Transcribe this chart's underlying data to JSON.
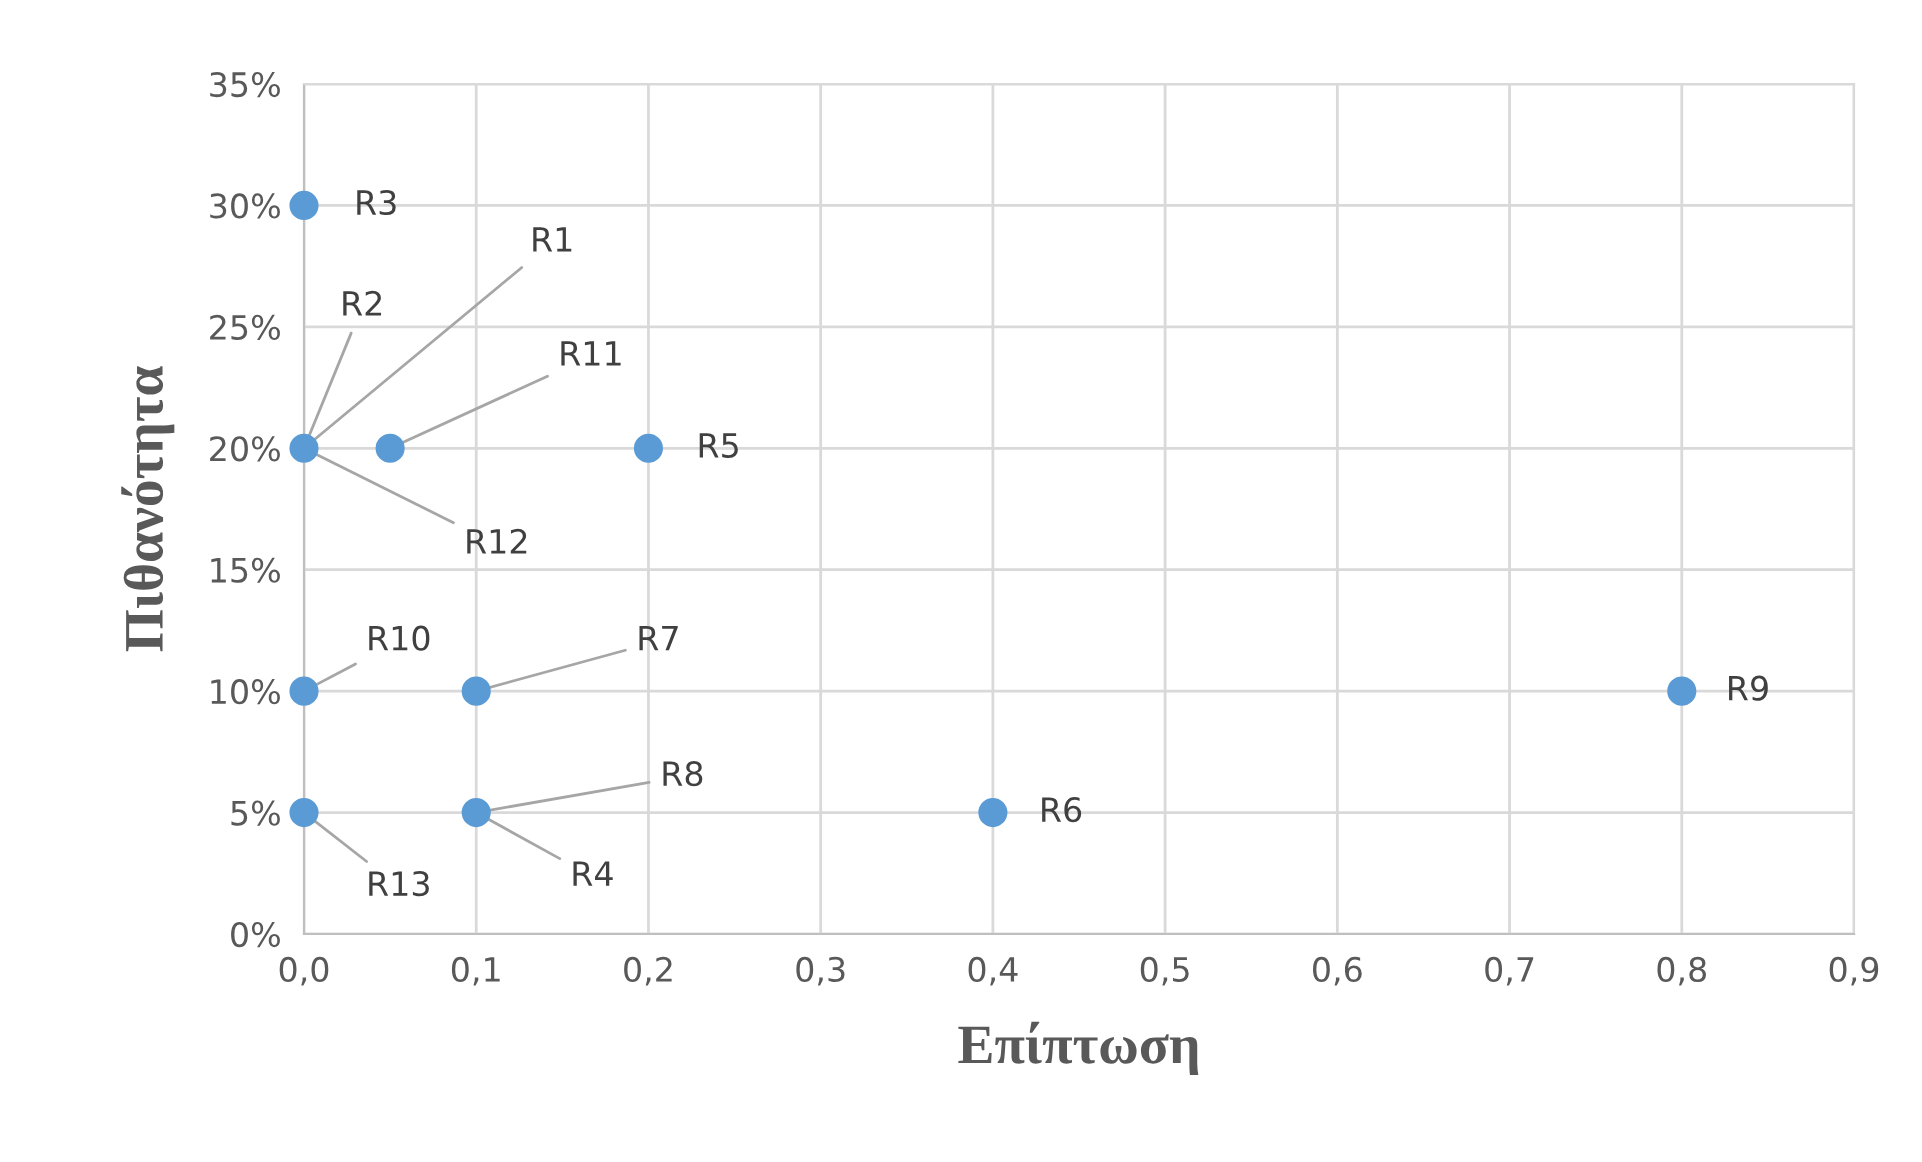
{
  "chart_data": {
    "type": "scatter",
    "xlabel": "Επίπτωση",
    "ylabel": "Πιθανότητα",
    "x": [
      0,
      0,
      0.1,
      0.2,
      0.4,
      0.1,
      0.8,
      0,
      0.05,
      0
    ],
    "series": [
      {
        "color": "#5b9bd5",
        "values": [
          20,
          30,
          5,
          20,
          5,
          10,
          10,
          10,
          20,
          5
        ]
      }
    ],
    "xlim": [
      0,
      0.9
    ],
    "ylim": [
      0,
      35
    ],
    "xticks": [
      {
        "value": 0,
        "label": "0,0"
      },
      {
        "value": 0.1,
        "label": "0,1"
      },
      {
        "value": 0.2,
        "label": "0,2"
      },
      {
        "value": 0.3,
        "label": "0,3"
      },
      {
        "value": 0.4,
        "label": "0,4"
      },
      {
        "value": 0.5,
        "label": "0,5"
      },
      {
        "value": 0.6,
        "label": "0,6"
      },
      {
        "value": 0.7,
        "label": "0,7"
      },
      {
        "value": 0.8,
        "label": "0,8"
      },
      {
        "value": 0.9,
        "label": "0,9"
      }
    ],
    "yticks": [
      {
        "value": 0,
        "label": "0%"
      },
      {
        "value": 5,
        "label": "5%"
      },
      {
        "value": 10,
        "label": "10%"
      },
      {
        "value": 15,
        "label": "15%"
      },
      {
        "value": 20,
        "label": "20%"
      },
      {
        "value": 25,
        "label": "25%"
      },
      {
        "value": 30,
        "label": "30%"
      },
      {
        "value": 35,
        "label": "35%"
      }
    ],
    "grid": true,
    "marker": "circle",
    "annotations": [
      {
        "text": "R1",
        "x": 0,
        "y": 20
      },
      {
        "text": "R2",
        "x": 0,
        "y": 20
      },
      {
        "text": "R3",
        "x": 0,
        "y": 30
      },
      {
        "text": "R4",
        "x": 0.1,
        "y": 5
      },
      {
        "text": "R5",
        "x": 0.2,
        "y": 20
      },
      {
        "text": "R6",
        "x": 0.4,
        "y": 5
      },
      {
        "text": "R7",
        "x": 0.1,
        "y": 10
      },
      {
        "text": "R8",
        "x": 0.1,
        "y": 5
      },
      {
        "text": "R9",
        "x": 0.8,
        "y": 10
      },
      {
        "text": "R10",
        "x": 0,
        "y": 10
      },
      {
        "text": "R11",
        "x": 0.05,
        "y": 20
      },
      {
        "text": "R12",
        "x": 0,
        "y": 20
      },
      {
        "text": "R13",
        "x": 0,
        "y": 5
      }
    ]
  }
}
